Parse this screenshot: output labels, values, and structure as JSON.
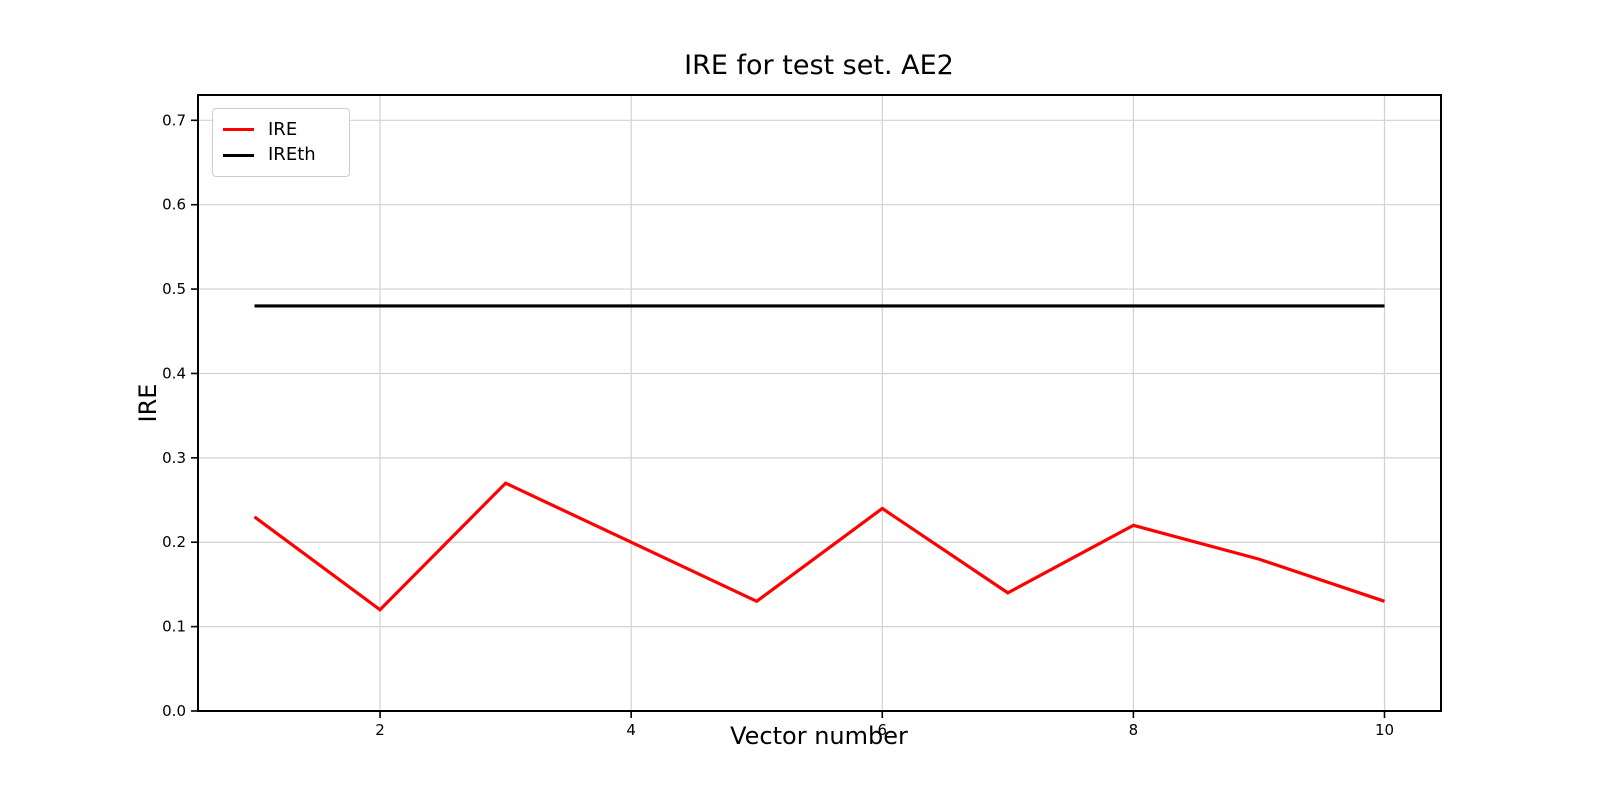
{
  "page": {
    "background": "#ffffff"
  },
  "chart_data": {
    "type": "line",
    "title": "IRE for test set. AE2",
    "xlabel": "Vector number",
    "ylabel": "IRE",
    "x": [
      1,
      2,
      3,
      4,
      5,
      6,
      7,
      8,
      9,
      10
    ],
    "series": [
      {
        "name": "IRE",
        "color": "#ff0000",
        "values": [
          0.23,
          0.12,
          0.27,
          0.2,
          0.13,
          0.24,
          0.14,
          0.22,
          0.18,
          0.13
        ]
      },
      {
        "name": "IREth",
        "color": "#000000",
        "values": [
          0.48,
          0.48,
          0.48,
          0.48,
          0.48,
          0.48,
          0.48,
          0.48,
          0.48,
          0.48
        ]
      }
    ],
    "xlim": [
      0.55,
      10.45
    ],
    "ylim": [
      0,
      0.73
    ],
    "xticks": {
      "values": [
        2,
        4,
        6,
        8,
        10
      ],
      "labels": [
        "2",
        "4",
        "6",
        "8",
        "10"
      ]
    },
    "yticks": {
      "values": [
        0.0,
        0.1,
        0.2,
        0.3,
        0.4,
        0.5,
        0.6,
        0.7
      ],
      "labels": [
        "0.0",
        "0.1",
        "0.2",
        "0.3",
        "0.4",
        "0.5",
        "0.6",
        "0.7"
      ]
    },
    "grid": true,
    "legend": {
      "position": "upper-left",
      "entries": [
        "IRE",
        "IREth"
      ]
    },
    "colors": {
      "grid": "#d2d2d2",
      "spine": "#000000",
      "background": "#ffffff",
      "ire_line": "#ff0000",
      "ireth_line": "#000000"
    }
  }
}
